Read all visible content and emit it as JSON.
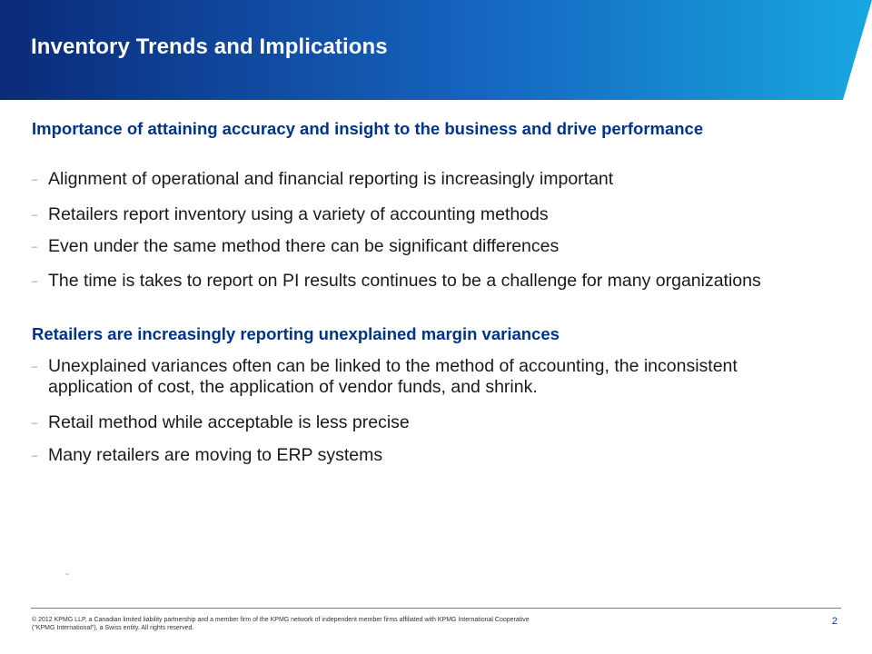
{
  "slide": {
    "title": "Inventory Trends and Implications",
    "colors": {
      "banner_dark": "#0b2a7a",
      "banner_mid": "#1565c0",
      "banner_light": "#18a7e0",
      "heading": "#00338d"
    }
  },
  "sections": [
    {
      "heading": "Importance of attaining accuracy and insight to the business and drive performance",
      "bullets": [
        "Alignment of operational and financial reporting is increasingly important",
        "Retailers report inventory using a variety of accounting methods",
        "Even under the same method there can be significant differences",
        "The time is takes to report on PI results continues to be a challenge for many organizations"
      ]
    },
    {
      "heading": "Retailers are increasingly reporting unexplained margin variances",
      "bullets": [
        "Unexplained variances often can be linked to the method of accounting, the inconsistent application of cost, the application of vendor funds, and shrink.",
        "Retail method while acceptable is less precise",
        "Many retailers are moving to ERP systems"
      ]
    }
  ],
  "bullet_marker": "–",
  "stray_marker": "-",
  "footer": {
    "text": "© 2012 KPMG LLP, a Canadian limited liability partnership and a member firm of the KPMG network of independent member firms affiliated with KPMG International Cooperative (\"KPMG International\"), a Swiss entity. All rights reserved.",
    "page_number": "2"
  }
}
